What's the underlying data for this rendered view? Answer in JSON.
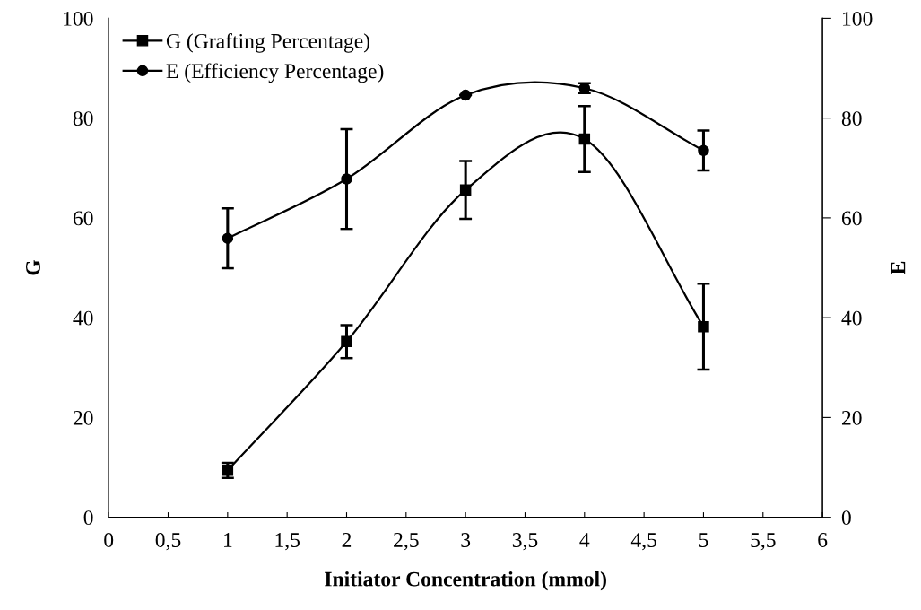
{
  "chart_data": {
    "type": "line",
    "xlabel": "Initiator Concentration (mmol)",
    "ylabel": "G",
    "y2label": "E",
    "x": [
      1,
      2,
      3,
      4,
      5
    ],
    "series": [
      {
        "name": "G (Grafting Percentage)",
        "color": "#000000",
        "marker": "square",
        "values": [
          9.4,
          35.2,
          65.6,
          75.8,
          38.2
        ],
        "errors": [
          1.5,
          3.3,
          5.8,
          6.6,
          8.6
        ]
      },
      {
        "name": "E (Efficiency Percentage)",
        "color": "#000000",
        "marker": "circle",
        "axis": "y2",
        "values": [
          55.9,
          67.8,
          84.6,
          86.0,
          73.5
        ],
        "errors": [
          6,
          10,
          null,
          1,
          4
        ]
      }
    ],
    "xlim": [
      0,
      6
    ],
    "xticks": [
      0,
      {
        "value": 0.5,
        "label": "0,5"
      },
      1,
      {
        "value": 1.5,
        "label": "1,5"
      },
      2,
      {
        "value": 2.5,
        "label": "2,5"
      },
      3,
      {
        "value": 3.5,
        "label": "3,5"
      },
      4,
      {
        "value": 4.5,
        "label": "4,5"
      },
      5,
      {
        "value": 5.5,
        "label": "5,5"
      },
      6
    ],
    "ylim": [
      0,
      100
    ],
    "yticks": [
      0,
      20,
      40,
      60,
      80,
      100
    ],
    "y2lim": [
      0,
      100
    ],
    "y2ticks": [
      0,
      20,
      40,
      60,
      80,
      100
    ],
    "grid": false,
    "legend": "top left",
    "line_style": "solid"
  }
}
